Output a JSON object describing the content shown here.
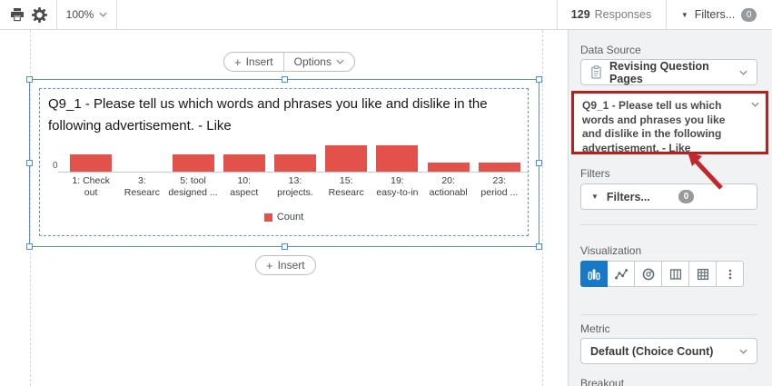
{
  "toolbar": {
    "icons": [
      "printer-icon",
      "gear-icon",
      "filter-funnel-icon"
    ],
    "zoom_level": "100%",
    "responses_count": "129",
    "responses_label": "Responses",
    "filters_label": "Filters...",
    "filters_badge": "0"
  },
  "canvas": {
    "insert_label": "Insert",
    "options_label": "Options"
  },
  "chart_data": {
    "type": "bar",
    "title": "Q9_1 - Please tell us which words and phrases you like and dislike in the following advertisement. - Like",
    "categories": [
      "1: Check out",
      "3: Researc",
      "5: tool designed ...",
      "10: aspect",
      "13: projects.",
      "15: Researc",
      "19: easy-to-in",
      "20: actionabl",
      "23: period ..."
    ],
    "category_lines": [
      [
        "1: Check",
        "out"
      ],
      [
        "3:",
        "Researc"
      ],
      [
        "5: tool",
        "designed ..."
      ],
      [
        "10:",
        "aspect"
      ],
      [
        "13:",
        "projects."
      ],
      [
        "15:",
        "Researc"
      ],
      [
        "19:",
        "easy-to-in"
      ],
      [
        "20:",
        "actionabl"
      ],
      [
        "23:",
        "period ..."
      ]
    ],
    "series": [
      {
        "name": "Count",
        "values": [
          2,
          0,
          2,
          2,
          2,
          3,
          3,
          1,
          1
        ]
      }
    ],
    "xlabel": "",
    "ylabel": "",
    "ylim": [
      0,
      3
    ],
    "y_ticks_visible": [
      "0"
    ],
    "grid": false,
    "legend_position": "bottom",
    "bar_color": "#e2514a"
  },
  "sidebar": {
    "data_source": {
      "label": "Data Source",
      "icon": "clipboard-icon",
      "selected": "Revising Question Pages"
    },
    "question": {
      "selected": "Q9_1 - Please tell us which words and phrases you like and dislike in the following advertisement. - Like",
      "annotation": "red-highlight-box-with-arrow",
      "annotation_color": "#b5211d"
    },
    "filters": {
      "label": "Filters",
      "button_label": "Filters...",
      "badge": "0"
    },
    "visualization": {
      "label": "Visualization",
      "options": [
        "bar-chart",
        "line-chart",
        "donut-chart",
        "columns",
        "table",
        "more"
      ],
      "selected": "bar-chart",
      "selected_color": "#1878c8"
    },
    "metric": {
      "label": "Metric",
      "selected": "Default (Choice Count)"
    },
    "breakout": {
      "label": "Breakout"
    }
  }
}
